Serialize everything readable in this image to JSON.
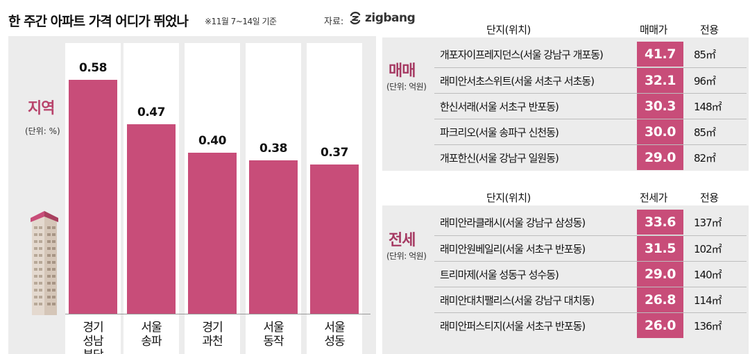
{
  "header": {
    "title": "한 주간 아파트 가격 어디가 뛰었나",
    "subtitle": "※11월 7~14일 기준",
    "source_label": "자료:",
    "source_logo": "zigbang"
  },
  "chart_data": {
    "type": "bar",
    "title": "지역",
    "unit": "(단위: %)",
    "categories": [
      [
        "경기",
        "성남",
        "분당"
      ],
      [
        "서울",
        "송파"
      ],
      [
        "경기",
        "과천"
      ],
      [
        "서울",
        "동작"
      ],
      [
        "서울",
        "성동"
      ]
    ],
    "values": [
      0.58,
      0.47,
      0.4,
      0.38,
      0.37
    ],
    "value_labels": [
      "0.58",
      "0.47",
      "0.40",
      "0.38",
      "0.37"
    ],
    "ylim": [
      0,
      0.58
    ],
    "bar_color": "#c84d79"
  },
  "sale_table": {
    "label": "매매",
    "unit": "(단위: 억원)",
    "columns": [
      "단지(위치)",
      "매매가",
      "전용"
    ],
    "rows": [
      {
        "name": "개포자이프레지던스(서울 강남구 개포동)",
        "price": "41.7",
        "area": "85㎡"
      },
      {
        "name": "래미안서초스위트(서울 서초구 서초동)",
        "price": "32.1",
        "area": "96㎡"
      },
      {
        "name": "한신서래(서울 서초구 반포동)",
        "price": "30.3",
        "area": "148㎡"
      },
      {
        "name": "파크리오(서울 송파구 신천동)",
        "price": "30.0",
        "area": "85㎡"
      },
      {
        "name": "개포한신(서울 강남구 일원동)",
        "price": "29.0",
        "area": "82㎡"
      }
    ]
  },
  "rent_table": {
    "label": "전세",
    "unit": "(단위: 억원)",
    "columns": [
      "단지(위치)",
      "전세가",
      "전용"
    ],
    "rows": [
      {
        "name": "래미안라클래시(서울 강남구 삼성동)",
        "price": "33.6",
        "area": "137㎡"
      },
      {
        "name": "래미안원베일리(서울 서초구 반포동)",
        "price": "31.5",
        "area": "102㎡"
      },
      {
        "name": "트리마제(서울 성동구 성수동)",
        "price": "29.0",
        "area": "140㎡"
      },
      {
        "name": "래미안대치팰리스(서울 강남구 대치동)",
        "price": "26.8",
        "area": "114㎡"
      },
      {
        "name": "래미안퍼스티지(서울 서초구 반포동)",
        "price": "26.0",
        "area": "136㎡"
      }
    ]
  },
  "colors": {
    "accent": "#c84d79",
    "label": "#b8436b",
    "panel": "#ececec"
  }
}
